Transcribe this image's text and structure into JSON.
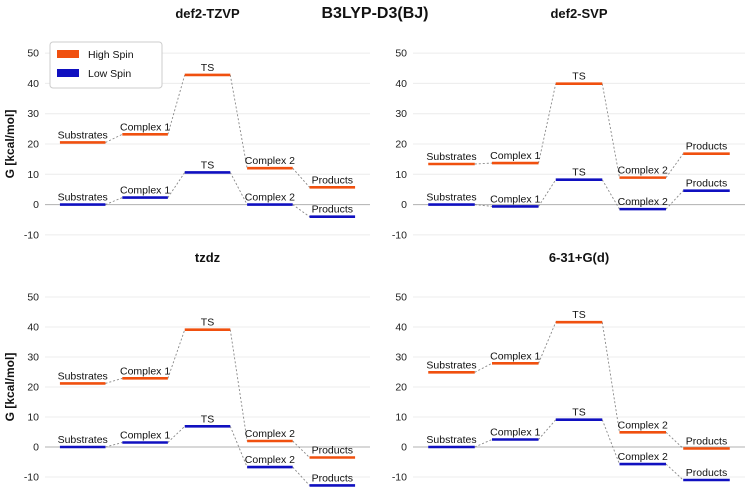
{
  "figure_title": "B3LYP-D3(BJ)",
  "legend": {
    "entries": [
      {
        "label": "High Spin",
        "color": "#f0500f"
      },
      {
        "label": "Low Spin",
        "color": "#1010c0"
      }
    ],
    "placement": "top-left of first panel"
  },
  "chart_data": [
    {
      "type": "energy-profile",
      "title": "def2-TZVP",
      "ylabel": "G [kcal/mol]",
      "ylim": [
        -15,
        55
      ],
      "yticks": [
        -10,
        0,
        10,
        20,
        30,
        40,
        50
      ],
      "categories": [
        "Substrates",
        "Complex 1",
        "TS",
        "Complex 2",
        "Products"
      ],
      "series": [
        {
          "name": "High Spin",
          "values": [
            20.5,
            23.2,
            42.8,
            12.0,
            5.7
          ]
        },
        {
          "name": "Low Spin",
          "values": [
            0.0,
            2.3,
            10.6,
            0.0,
            -4.0
          ]
        }
      ]
    },
    {
      "type": "energy-profile",
      "title": "def2-SVP",
      "ylabel": "",
      "ylim": [
        -15,
        55
      ],
      "yticks": [
        -10,
        0,
        10,
        20,
        30,
        40,
        50
      ],
      "categories": [
        "Substrates",
        "Complex 1",
        "TS",
        "Complex 2",
        "Products"
      ],
      "series": [
        {
          "name": "High Spin",
          "values": [
            13.4,
            13.7,
            39.9,
            8.9,
            16.8
          ]
        },
        {
          "name": "Low Spin",
          "values": [
            0.0,
            -0.6,
            8.2,
            -1.5,
            4.6
          ]
        }
      ]
    },
    {
      "type": "energy-profile",
      "title": "tzdz",
      "ylabel": "G [kcal/mol]",
      "ylim": [
        -15,
        55
      ],
      "yticks": [
        -10,
        0,
        10,
        20,
        30,
        40,
        50
      ],
      "categories": [
        "Substrates",
        "Complex 1",
        "TS",
        "Complex 2",
        "Products"
      ],
      "series": [
        {
          "name": "High Spin",
          "values": [
            21.2,
            22.9,
            39.1,
            2.0,
            -3.5
          ]
        },
        {
          "name": "Low Spin",
          "values": [
            0.0,
            1.5,
            6.9,
            -6.7,
            -12.8
          ]
        }
      ]
    },
    {
      "type": "energy-profile",
      "title": "6-31+G(d)",
      "ylabel": "",
      "ylim": [
        -15,
        55
      ],
      "yticks": [
        -10,
        0,
        10,
        20,
        30,
        40,
        50
      ],
      "categories": [
        "Substrates",
        "Complex 1",
        "TS",
        "Complex 2",
        "Products"
      ],
      "series": [
        {
          "name": "High Spin",
          "values": [
            24.9,
            27.9,
            41.6,
            4.9,
            -0.5
          ]
        },
        {
          "name": "Low Spin",
          "values": [
            0.0,
            2.5,
            9.1,
            -5.7,
            -11.0
          ]
        }
      ]
    }
  ]
}
